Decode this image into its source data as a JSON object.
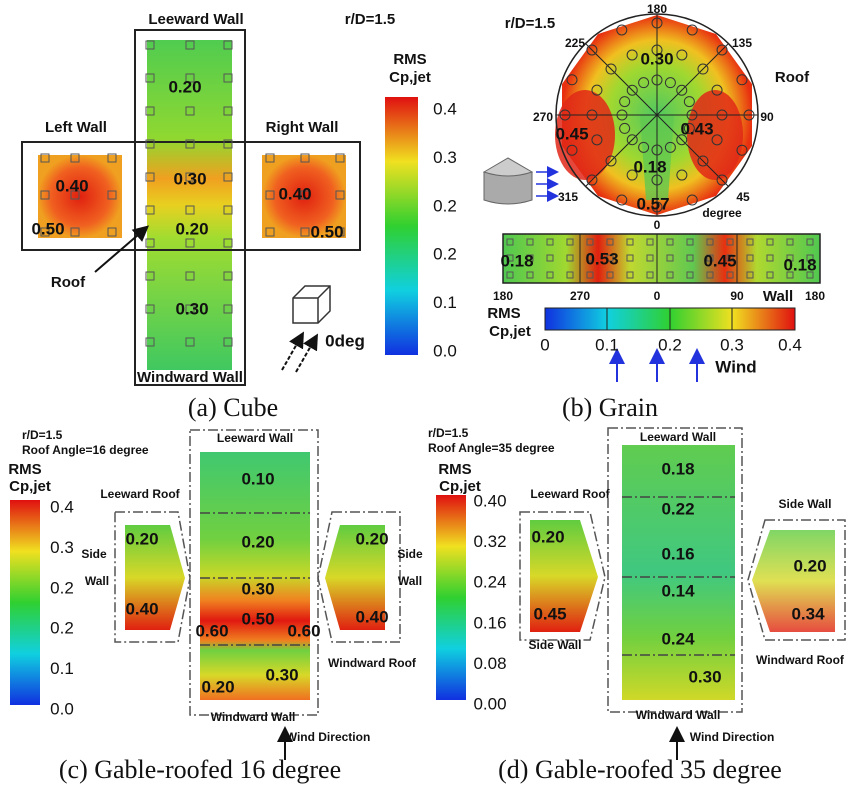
{
  "panel_a": {
    "caption": "(a) Cube",
    "ratio": "r/D=1.5",
    "leeward_wall": "Leeward Wall",
    "left_wall": "Left Wall",
    "right_wall": "Right Wall",
    "roof": "Roof",
    "windward_wall": "Windward Wall",
    "wind_angle": "0deg",
    "colorbar_title": [
      "RMS",
      "Cp,jet"
    ],
    "colorbar_ticks": [
      "0.4",
      "0.3",
      "0.2",
      "0.2",
      "0.1",
      "0.0"
    ],
    "values": [
      "0.20",
      "0.40",
      "0.30",
      "0.50",
      "0.20",
      "0.40",
      "0.50",
      "0.30"
    ]
  },
  "panel_b": {
    "caption": "(b) Grain",
    "ratio": "r/D=1.5",
    "roof": "Roof",
    "degree": "degree",
    "wall": "Wall",
    "wind": "Wind",
    "angles": [
      "180",
      "225",
      "135",
      "270",
      "90",
      "315",
      "45",
      "0"
    ],
    "roof_values": [
      "0.30",
      "0.45",
      "0.43",
      "0.18",
      "0.57"
    ],
    "wall_values": [
      "0.18",
      "0.53",
      "0.45",
      "0.18"
    ],
    "wall_axis": [
      "180",
      "270",
      "0",
      "90",
      "180"
    ],
    "colorbar_title": [
      "RMS",
      "Cp,jet"
    ],
    "colorbar_ticks": [
      "0",
      "0.1",
      "0.2",
      "0.3",
      "0.4"
    ]
  },
  "panel_c": {
    "caption": "(c) Gable-roofed 16 degree",
    "ratio": "r/D=1.5",
    "roof_angle": "Roof Angle=16 degree",
    "colorbar_title": [
      "RMS",
      "Cp,jet"
    ],
    "colorbar_ticks": [
      "0.4",
      "0.3",
      "0.2",
      "0.2",
      "0.1",
      "0.0"
    ],
    "leeward_wall": "Leeward Wall",
    "leeward_roof": "Leeward Roof",
    "windward_roof": "Windward Roof",
    "windward_wall": "Windward Wall",
    "wind_direction": "Wind Direction",
    "side_wall_left": [
      "Side",
      "Wall"
    ],
    "side_wall_right": [
      "Side",
      "Wall"
    ],
    "center_values": [
      "0.10",
      "0.20",
      "0.30",
      "0.50",
      "0.60",
      "0.60",
      "0.30",
      "0.20"
    ],
    "left_values": [
      "0.20",
      "0.40"
    ],
    "right_values": [
      "0.20",
      "0.40"
    ]
  },
  "panel_d": {
    "caption": "(d) Gable-roofed 35 degree",
    "ratio": "r/D=1.5",
    "roof_angle": "Roof Angle=35 degree",
    "colorbar_title": [
      "RMS",
      "Cp,jet"
    ],
    "colorbar_ticks": [
      "0.40",
      "0.32",
      "0.24",
      "0.16",
      "0.08",
      "0.00"
    ],
    "leeward_wall": "Leeward Wall",
    "leeward_roof": "Leeward Roof",
    "windward_roof": "Windward Roof",
    "windward_wall": "Windward Wall",
    "wind_direction": "Wind Direction",
    "side_wall_right": "Side Wall",
    "side_wall_left": "Side Wall",
    "center_values": [
      "0.18",
      "0.22",
      "0.16",
      "0.14",
      "0.24",
      "0.30"
    ],
    "left_values": [
      "0.20",
      "0.45"
    ],
    "right_values": [
      "0.20",
      "0.34"
    ]
  }
}
